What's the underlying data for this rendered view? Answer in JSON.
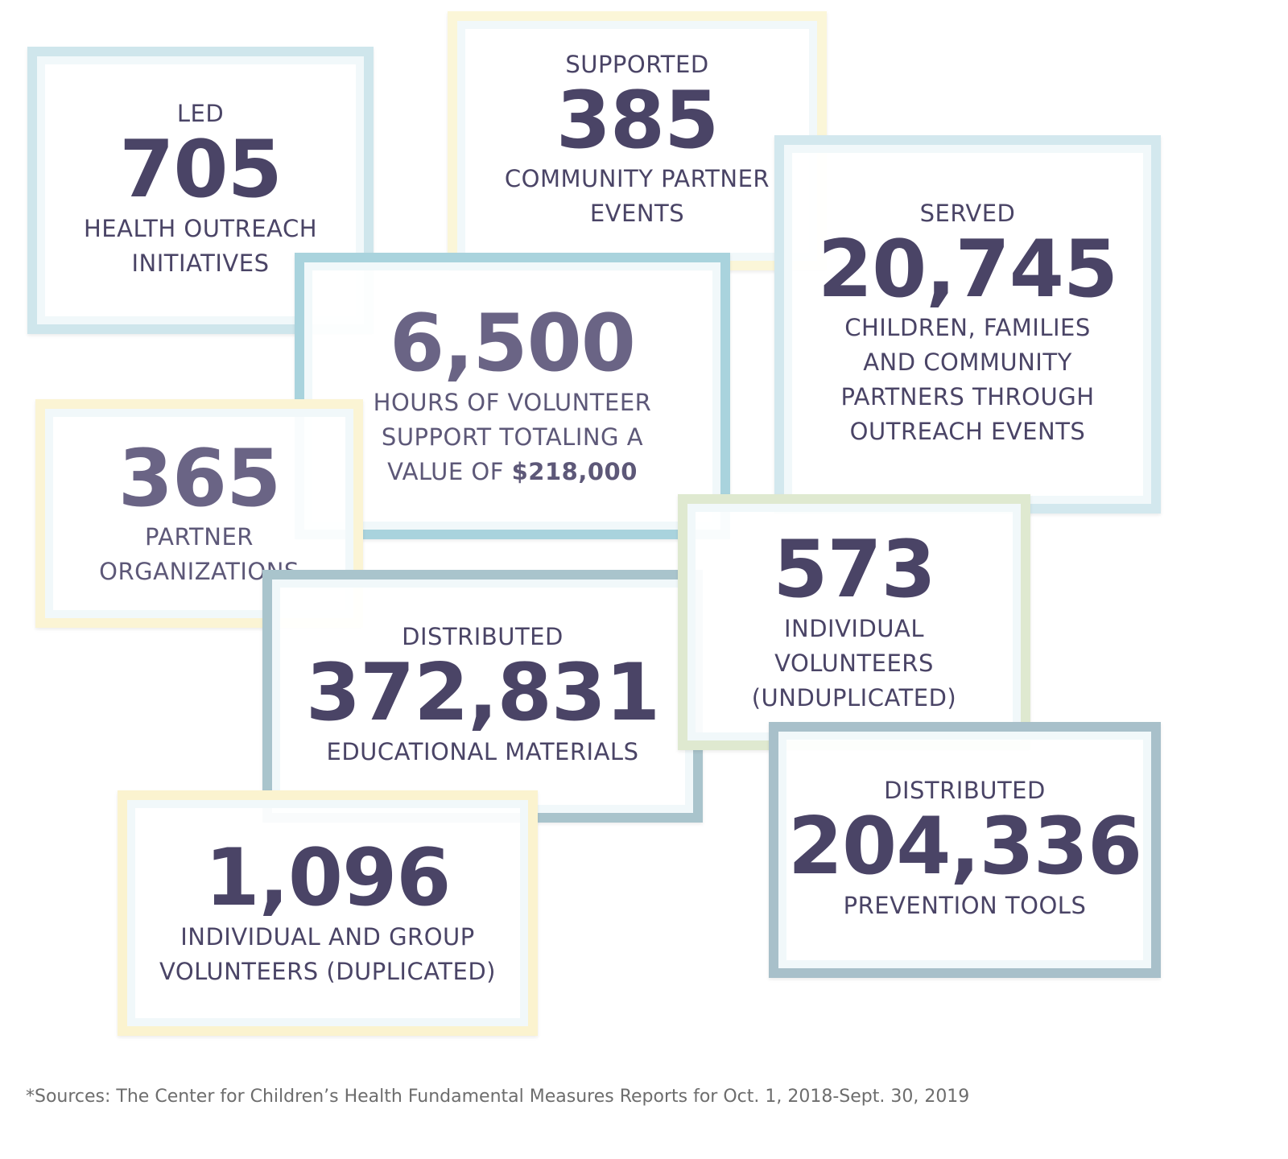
{
  "colors": {
    "text": "#4a4466",
    "light_blue": "#cfe6ec",
    "blue": "#a9d3dd",
    "yellow": "#fbf5d6",
    "green": "#dfe9d0",
    "steel": "#a9c3cc"
  },
  "stats": [
    {
      "pre": "LED",
      "num": "705",
      "label": "HEALTH OUTREACH INITIATIVES"
    },
    {
      "pre": "SUPPORTED",
      "num": "385",
      "label": "COMMUNITY PARTNER EVENTS"
    },
    {
      "pre": "SERVED",
      "num": "20,745",
      "label": "CHILDREN, FAMILIES AND COMMUNITY PARTNERS THROUGH OUTREACH EVENTS"
    },
    {
      "pre": "",
      "num": "6,500",
      "label": "HOURS OF VOLUNTEER SUPPORT TOTALING A VALUE OF",
      "label_bold": "$218,000"
    },
    {
      "pre": "",
      "num": "365",
      "label": "PARTNER ORGANIZATIONS"
    },
    {
      "pre": "",
      "num": "573",
      "label": "INDIVIDUAL VOLUNTEERS (UNDUPLICATED)"
    },
    {
      "pre": "DISTRIBUTED",
      "num": "372,831",
      "label": "EDUCATIONAL MATERIALS"
    },
    {
      "pre": "DISTRIBUTED",
      "num": "204,336",
      "label": "PREVENTION TOOLS"
    },
    {
      "pre": "",
      "num": "1,096",
      "label": "INDIVIDUAL AND GROUP VOLUNTEERS (DUPLICATED)"
    }
  ],
  "footer": "*Sources: The Center for Children’s Health Fundamental Measures Reports for Oct. 1, 2018-Sept. 30, 2019"
}
